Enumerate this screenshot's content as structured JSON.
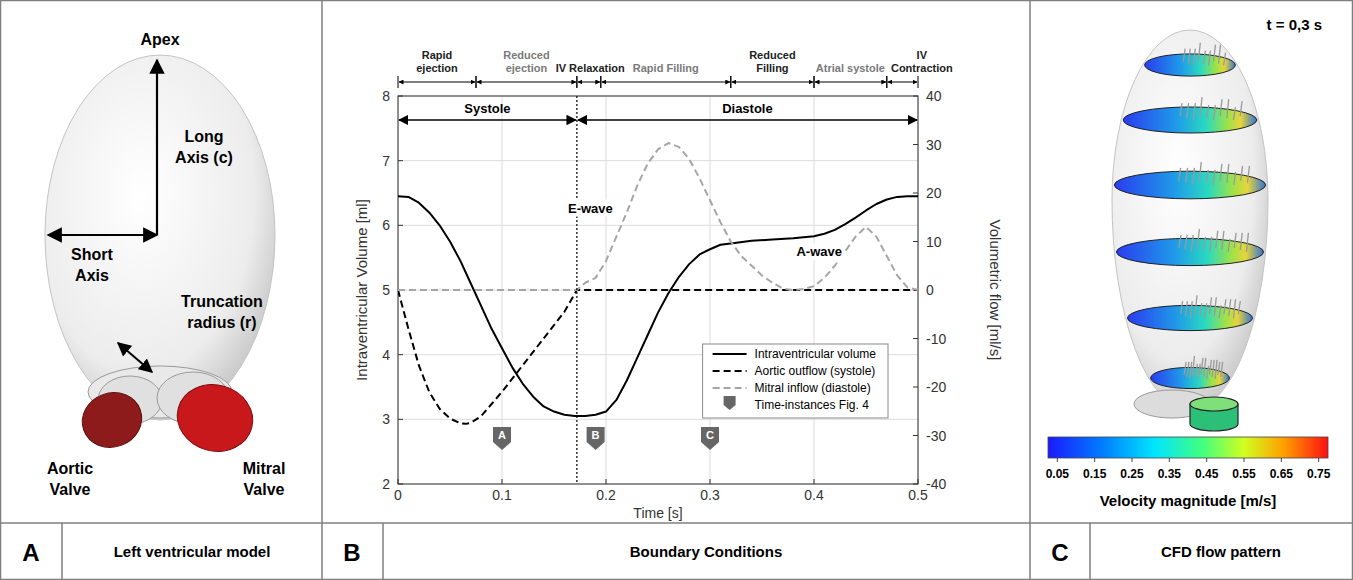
{
  "panel_a": {
    "letter": "A",
    "title": "Left ventricular model",
    "labels": {
      "apex": "Apex",
      "long_axis": "Long Axis (c)",
      "short_axis": "Short Axis",
      "truncation": "Truncation radius (r)",
      "aortic_valve": "Aortic Valve",
      "mitral_valve": "Mitral Valve"
    }
  },
  "chart_data": {
    "type": "line",
    "letter": "B",
    "title": "Boundary Conditions",
    "x_label": "Time [s]",
    "y_label": "Intraventricular Volume [ml]",
    "y2_label": "Volumetric flow [ml/s]",
    "xlim": [
      0,
      0.5
    ],
    "xticks": [
      0,
      0.1,
      0.2,
      0.3,
      0.4,
      0.5
    ],
    "ylim": [
      2,
      8
    ],
    "yticks": [
      2,
      3,
      4,
      5,
      6,
      7,
      8
    ],
    "y2lim": [
      -40,
      40
    ],
    "y2ticks": [
      -40,
      -30,
      -20,
      -10,
      0,
      10,
      20,
      30,
      40
    ],
    "grid": true,
    "legend": "lower right",
    "series": [
      {
        "name": "Intraventricular volume",
        "color": "#000000",
        "line_style": "solid",
        "x": [
          0,
          0.01,
          0.02,
          0.03,
          0.04,
          0.05,
          0.06,
          0.07,
          0.08,
          0.09,
          0.1,
          0.11,
          0.12,
          0.13,
          0.14,
          0.15,
          0.16,
          0.17,
          0.18,
          0.19,
          0.2,
          0.21,
          0.22,
          0.23,
          0.24,
          0.25,
          0.26,
          0.27,
          0.28,
          0.29,
          0.3,
          0.31,
          0.32,
          0.34,
          0.36,
          0.38,
          0.4,
          0.41,
          0.42,
          0.43,
          0.44,
          0.45,
          0.46,
          0.47,
          0.48,
          0.49,
          0.5
        ],
        "values": [
          6.45,
          6.44,
          6.35,
          6.2,
          6.0,
          5.75,
          5.45,
          5.1,
          4.75,
          4.4,
          4.1,
          3.8,
          3.55,
          3.35,
          3.2,
          3.12,
          3.07,
          3.05,
          3.05,
          3.07,
          3.12,
          3.3,
          3.6,
          3.95,
          4.3,
          4.65,
          4.95,
          5.2,
          5.4,
          5.55,
          5.63,
          5.7,
          5.72,
          5.76,
          5.78,
          5.8,
          5.83,
          5.87,
          5.93,
          6.02,
          6.12,
          6.23,
          6.33,
          6.4,
          6.44,
          6.45,
          6.45
        ]
      },
      {
        "name": "Aortic outflow (systole)",
        "color": "#000000",
        "line_style": "dashed",
        "axis": "y2",
        "x": [
          0,
          0.01,
          0.02,
          0.03,
          0.04,
          0.05,
          0.06,
          0.065,
          0.07,
          0.08,
          0.09,
          0.1,
          0.12,
          0.14,
          0.16,
          0.172,
          0.2,
          0.3,
          0.4,
          0.5
        ],
        "values": [
          0,
          -8,
          -15.5,
          -21,
          -24.5,
          -26.5,
          -27.5,
          -27.6,
          -27.4,
          -26,
          -23.5,
          -21,
          -15.5,
          -10,
          -4.5,
          0,
          0,
          0,
          0,
          0
        ]
      },
      {
        "name": "Mitral inflow (diastole)",
        "color": "#a6a6a6",
        "line_style": "dashed",
        "axis": "y2",
        "x": [
          0,
          0.172,
          0.18,
          0.19,
          0.2,
          0.21,
          0.22,
          0.23,
          0.24,
          0.25,
          0.26,
          0.27,
          0.28,
          0.29,
          0.3,
          0.31,
          0.32,
          0.33,
          0.34,
          0.35,
          0.36,
          0.37,
          0.38,
          0.39,
          0.4,
          0.41,
          0.42,
          0.43,
          0.44,
          0.45,
          0.46,
          0.47,
          0.48,
          0.49,
          0.5
        ],
        "values": [
          0,
          0,
          1.5,
          2.5,
          6,
          11,
          16,
          21.5,
          26,
          29,
          30.3,
          29.5,
          27,
          23,
          18.5,
          14,
          10,
          7,
          5,
          3,
          1.5,
          0.3,
          0,
          0.2,
          0.8,
          2.5,
          5,
          8,
          11,
          13,
          11,
          7,
          3,
          0.5,
          0
        ]
      }
    ],
    "periods": [
      {
        "label": "Systole",
        "start": 0,
        "end": 0.172
      },
      {
        "label": "Diastole",
        "start": 0.172,
        "end": 0.5
      }
    ],
    "phases": [
      {
        "label": "Rapid ejection",
        "start": 0,
        "end": 0.075
      },
      {
        "label": "Reduced ejection",
        "start": 0.075,
        "end": 0.172
      },
      {
        "label": "IV Relaxation",
        "start": 0.172,
        "end": 0.195
      },
      {
        "label": "Rapid Filling",
        "start": 0.195,
        "end": 0.32
      },
      {
        "label": "Reduced Filling",
        "start": 0.32,
        "end": 0.4
      },
      {
        "label": "Atrial systole",
        "start": 0.4,
        "end": 0.47
      },
      {
        "label": "IV Contraction",
        "start": 0.47,
        "end": 0.5
      }
    ],
    "annotations": [
      {
        "text": "E-wave",
        "x": 0.185,
        "y": 17,
        "axis": "y2"
      },
      {
        "text": "A-wave",
        "x": 0.405,
        "y": 8,
        "axis": "y2"
      }
    ],
    "time_instances": {
      "name": "Time-instances Fig. 4",
      "points": [
        {
          "label": "A",
          "x": 0.1
        },
        {
          "label": "B",
          "x": 0.19
        },
        {
          "label": "C",
          "x": 0.3
        }
      ]
    }
  },
  "panel_c": {
    "letter": "C",
    "title": "CFD flow pattern",
    "time_label": "t = 0,3 s",
    "colorbar": {
      "title": "Velocity magnitude [m/s]",
      "range": [
        0.025,
        0.775
      ],
      "ticks": [
        0.05,
        0.15,
        0.25,
        0.35,
        0.45,
        0.55,
        0.65,
        0.75
      ]
    }
  }
}
